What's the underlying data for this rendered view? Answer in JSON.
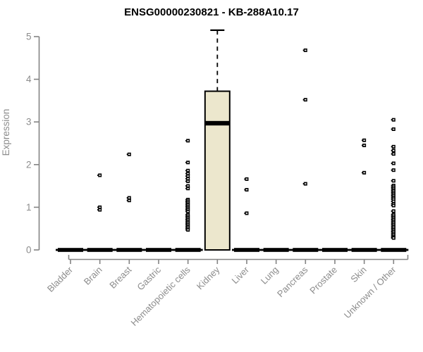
{
  "chart_data": {
    "type": "boxplot",
    "title": "ENSG00000230821 - KB-288A10.17",
    "ylabel": "Expression",
    "xlabel": "",
    "ylim": [
      0,
      5
    ],
    "yticks": [
      0,
      1,
      2,
      3,
      4,
      5
    ],
    "grid": false,
    "legend": false,
    "categories": [
      "Bladder",
      "Brain",
      "Breast",
      "Gastric",
      "Hematopoietic cells",
      "Kidney",
      "Liver",
      "Lung",
      "Pancreas",
      "Prostate",
      "Skin",
      "Unknown / Other"
    ],
    "boxes": [
      {
        "category": "Bladder",
        "q1": 0,
        "median": 0,
        "q3": 0,
        "whisker_low": 0,
        "whisker_high": 0,
        "outliers": []
      },
      {
        "category": "Brain",
        "q1": 0,
        "median": 0,
        "q3": 0,
        "whisker_low": 0,
        "whisker_high": 0,
        "outliers": [
          1.75,
          1.0,
          0.94
        ]
      },
      {
        "category": "Breast",
        "q1": 0,
        "median": 0,
        "q3": 0,
        "whisker_low": 0,
        "whisker_high": 0,
        "outliers": [
          2.24,
          1.22,
          1.16
        ]
      },
      {
        "category": "Gastric",
        "q1": 0,
        "median": 0,
        "q3": 0,
        "whisker_low": 0,
        "whisker_high": 0,
        "outliers": []
      },
      {
        "category": "Hematopoietic cells",
        "q1": 0,
        "median": 0,
        "q3": 0,
        "whisker_low": 0,
        "whisker_high": 0,
        "outliers": [
          2.56,
          2.05,
          1.86,
          1.79,
          1.73,
          1.67,
          1.61,
          1.5,
          1.44,
          1.18,
          1.14,
          1.1,
          1.06,
          1.02,
          0.98,
          0.94,
          0.9,
          0.83,
          0.79,
          0.75,
          0.71,
          0.67,
          0.63,
          0.59,
          0.55,
          0.51,
          0.47
        ]
      },
      {
        "category": "Kidney",
        "q1": 0,
        "median": 2.97,
        "q3": 3.72,
        "whisker_low": 0,
        "whisker_high": 5.15,
        "outliers": []
      },
      {
        "category": "Liver",
        "q1": 0,
        "median": 0,
        "q3": 0,
        "whisker_low": 0,
        "whisker_high": 0,
        "outliers": [
          1.66,
          1.41,
          0.86
        ]
      },
      {
        "category": "Lung",
        "q1": 0,
        "median": 0,
        "q3": 0,
        "whisker_low": 0,
        "whisker_high": 0,
        "outliers": []
      },
      {
        "category": "Pancreas",
        "q1": 0,
        "median": 0,
        "q3": 0,
        "whisker_low": 0,
        "whisker_high": 0,
        "outliers": [
          4.68,
          3.52,
          1.55
        ]
      },
      {
        "category": "Prostate",
        "q1": 0,
        "median": 0,
        "q3": 0,
        "whisker_low": 0,
        "whisker_high": 0,
        "outliers": []
      },
      {
        "category": "Skin",
        "q1": 0,
        "median": 0,
        "q3": 0,
        "whisker_low": 0,
        "whisker_high": 0,
        "outliers": [
          2.57,
          2.45,
          1.81
        ]
      },
      {
        "category": "Unknown / Other",
        "q1": 0,
        "median": 0,
        "q3": 0,
        "whisker_low": 0,
        "whisker_high": 0,
        "outliers": [
          3.05,
          2.83,
          2.42,
          2.33,
          2.25,
          2.03,
          1.87,
          1.62,
          1.51,
          1.47,
          1.43,
          1.39,
          1.35,
          1.31,
          1.27,
          1.23,
          1.19,
          1.14,
          1.08,
          1.04,
          0.91,
          0.83,
          0.79,
          0.75,
          0.71,
          0.67,
          0.63,
          0.59,
          0.55,
          0.51,
          0.47,
          0.43,
          0.39,
          0.35,
          0.31,
          0.28
        ]
      }
    ],
    "colors": {
      "box_fill": "#ece7cd",
      "box_stroke": "#000000",
      "median": "#000000",
      "collapsed_bar": "#000000",
      "outlier": "#000000",
      "axis": "#848484",
      "tick_label": "#8c8c8c",
      "title": "#000000"
    }
  }
}
